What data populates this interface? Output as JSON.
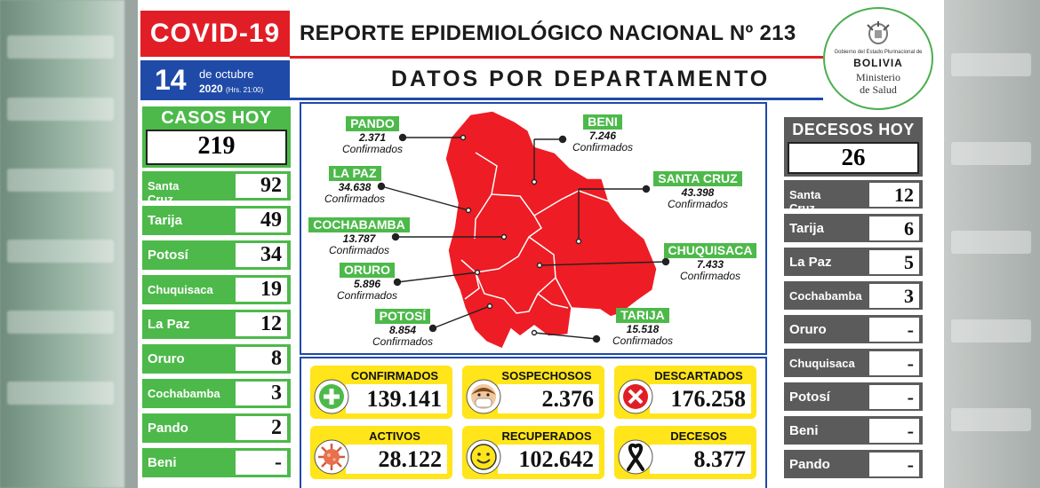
{
  "header": {
    "covid_label": "COVID-19",
    "report_title": "REPORTE EPIDEMIOLÓGICO NACIONAL Nº 213",
    "date_day": "14",
    "date_month": "de octubre",
    "date_year": "2020",
    "date_time": "(Hrs. 21:00)",
    "subtitle": "DATOS POR DEPARTAMENTO"
  },
  "logo": {
    "line1": "Gobierno del Estado Plurinacional de",
    "line2": "BOLIVIA",
    "line3": "Ministerio",
    "line4": "de Salud"
  },
  "cases_today": {
    "title": "CASOS HOY",
    "total": "219",
    "rows": [
      {
        "name": "Santa\nCruz",
        "value": "92"
      },
      {
        "name": "Tarija",
        "value": "49"
      },
      {
        "name": "Potosí",
        "value": "34"
      },
      {
        "name": "Chuquisaca",
        "value": "19"
      },
      {
        "name": "La Paz",
        "value": "12"
      },
      {
        "name": "Oruro",
        "value": "8"
      },
      {
        "name": "Cochabamba",
        "value": "3"
      },
      {
        "name": "Pando",
        "value": "2"
      },
      {
        "name": "Beni",
        "value": "-"
      }
    ]
  },
  "deaths_today": {
    "title": "DECESOS HOY",
    "total": "26",
    "rows": [
      {
        "name": "Santa\nCruz",
        "value": "12"
      },
      {
        "name": "Tarija",
        "value": "6"
      },
      {
        "name": "La Paz",
        "value": "5"
      },
      {
        "name": "Cochabamba",
        "value": "3"
      },
      {
        "name": "Oruro",
        "value": "-"
      },
      {
        "name": "Chuquisaca",
        "value": "-"
      },
      {
        "name": "Potosí",
        "value": "-"
      },
      {
        "name": "Beni",
        "value": "-"
      },
      {
        "name": "Pando",
        "value": "-"
      }
    ]
  },
  "map": {
    "confirmed_word": "Confirmados",
    "departments": [
      {
        "name": "PANDO",
        "value": "2.371"
      },
      {
        "name": "LA PAZ",
        "value": "34.638"
      },
      {
        "name": "COCHABAMBA",
        "value": "13.787"
      },
      {
        "name": "ORURO",
        "value": "5.896"
      },
      {
        "name": "POTOSÍ",
        "value": "8.854"
      },
      {
        "name": "BENI",
        "value": "7.246"
      },
      {
        "name": "SANTA CRUZ",
        "value": "43.398"
      },
      {
        "name": "CHUQUISACA",
        "value": "7.433"
      },
      {
        "name": "TARIJA",
        "value": "15.518"
      }
    ],
    "map_color": "#ee1c24"
  },
  "totals": [
    {
      "label": "CONFIRMADOS",
      "value": "139.141",
      "icon": "plus-icon"
    },
    {
      "label": "SOSPECHOSOS",
      "value": "2.376",
      "icon": "masked-face-icon"
    },
    {
      "label": "DESCARTADOS",
      "value": "176.258",
      "icon": "x-circle-icon"
    },
    {
      "label": "ACTIVOS",
      "value": "28.122",
      "icon": "virus-icon"
    },
    {
      "label": "RECUPERADOS",
      "value": "102.642",
      "icon": "smiley-icon"
    },
    {
      "label": "DECESOS",
      "value": "8.377",
      "icon": "mourning-ribbon-icon"
    }
  ],
  "colors": {
    "red": "#e11e26",
    "blue": "#1f4aa8",
    "green": "#4db94a",
    "grey": "#5b5b5b",
    "yellow": "#ffe51a"
  }
}
